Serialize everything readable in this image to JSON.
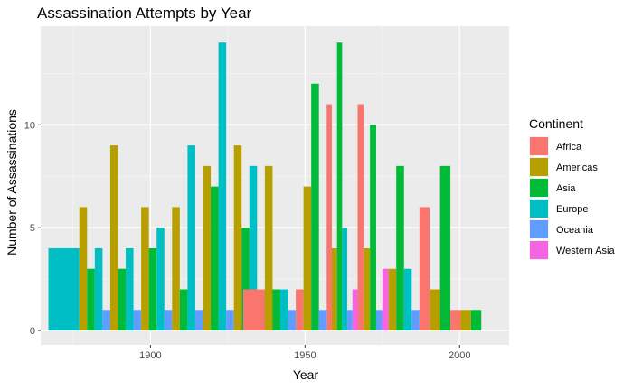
{
  "chart_data": {
    "type": "bar",
    "title": "Assassination Attempts by Year",
    "xlabel": "Year",
    "ylabel": "Number of Assassinations",
    "x_ticks": [
      1900,
      1950,
      2000
    ],
    "y_ticks": [
      0,
      5,
      10
    ],
    "xlim": [
      1864.5,
      2016
    ],
    "ylim": [
      -0.7,
      14.8
    ],
    "grid": true,
    "legend": {
      "title": "Continent",
      "position": "right"
    },
    "series": [
      {
        "name": "Africa",
        "color": "#F8766D",
        "points": [
          [
            1935,
            2
          ],
          [
            1952,
            2
          ],
          [
            1962,
            11
          ],
          [
            1972,
            11
          ],
          [
            1992,
            6
          ],
          [
            2002,
            1
          ]
        ]
      },
      {
        "name": "Americas",
        "color": "#B79F00",
        "points": [
          [
            1882,
            6
          ],
          [
            1892,
            9
          ],
          [
            1902,
            6
          ],
          [
            1912,
            6
          ],
          [
            1922,
            8
          ],
          [
            1932,
            9
          ],
          [
            1942,
            8
          ],
          [
            1952,
            7
          ],
          [
            1962,
            4
          ],
          [
            1972,
            4
          ],
          [
            1982,
            3
          ],
          [
            1992,
            2
          ],
          [
            2002,
            1
          ]
        ]
      },
      {
        "name": "Asia",
        "color": "#00BA38",
        "points": [
          [
            1882,
            3
          ],
          [
            1892,
            3
          ],
          [
            1902,
            4
          ],
          [
            1912,
            2
          ],
          [
            1922,
            7
          ],
          [
            1932,
            5
          ],
          [
            1942,
            2
          ],
          [
            1952,
            12
          ],
          [
            1962,
            14
          ],
          [
            1972,
            10
          ],
          [
            1982,
            8
          ],
          [
            1992,
            8
          ],
          [
            2002,
            1
          ]
        ]
      },
      {
        "name": "Europe",
        "color": "#00BFC4",
        "points": [
          [
            1872,
            4
          ],
          [
            1882,
            4
          ],
          [
            1892,
            4
          ],
          [
            1902,
            5
          ],
          [
            1912,
            9
          ],
          [
            1922,
            14
          ],
          [
            1932,
            8
          ],
          [
            1942,
            2
          ],
          [
            1962,
            5
          ],
          [
            1982,
            3
          ]
        ]
      },
      {
        "name": "Oceania",
        "color": "#619CFF",
        "points": [
          [
            1882,
            1
          ],
          [
            1892,
            1
          ],
          [
            1902,
            1
          ],
          [
            1912,
            1
          ],
          [
            1922,
            1
          ],
          [
            1932,
            1
          ],
          [
            1942,
            1
          ],
          [
            1952,
            1
          ],
          [
            1962,
            1
          ],
          [
            1972,
            1
          ],
          [
            1982,
            1
          ]
        ]
      },
      {
        "name": "Western Asia",
        "color": "#F564E3",
        "points": [
          [
            1962,
            2
          ],
          [
            1972,
            3
          ]
        ]
      }
    ]
  }
}
